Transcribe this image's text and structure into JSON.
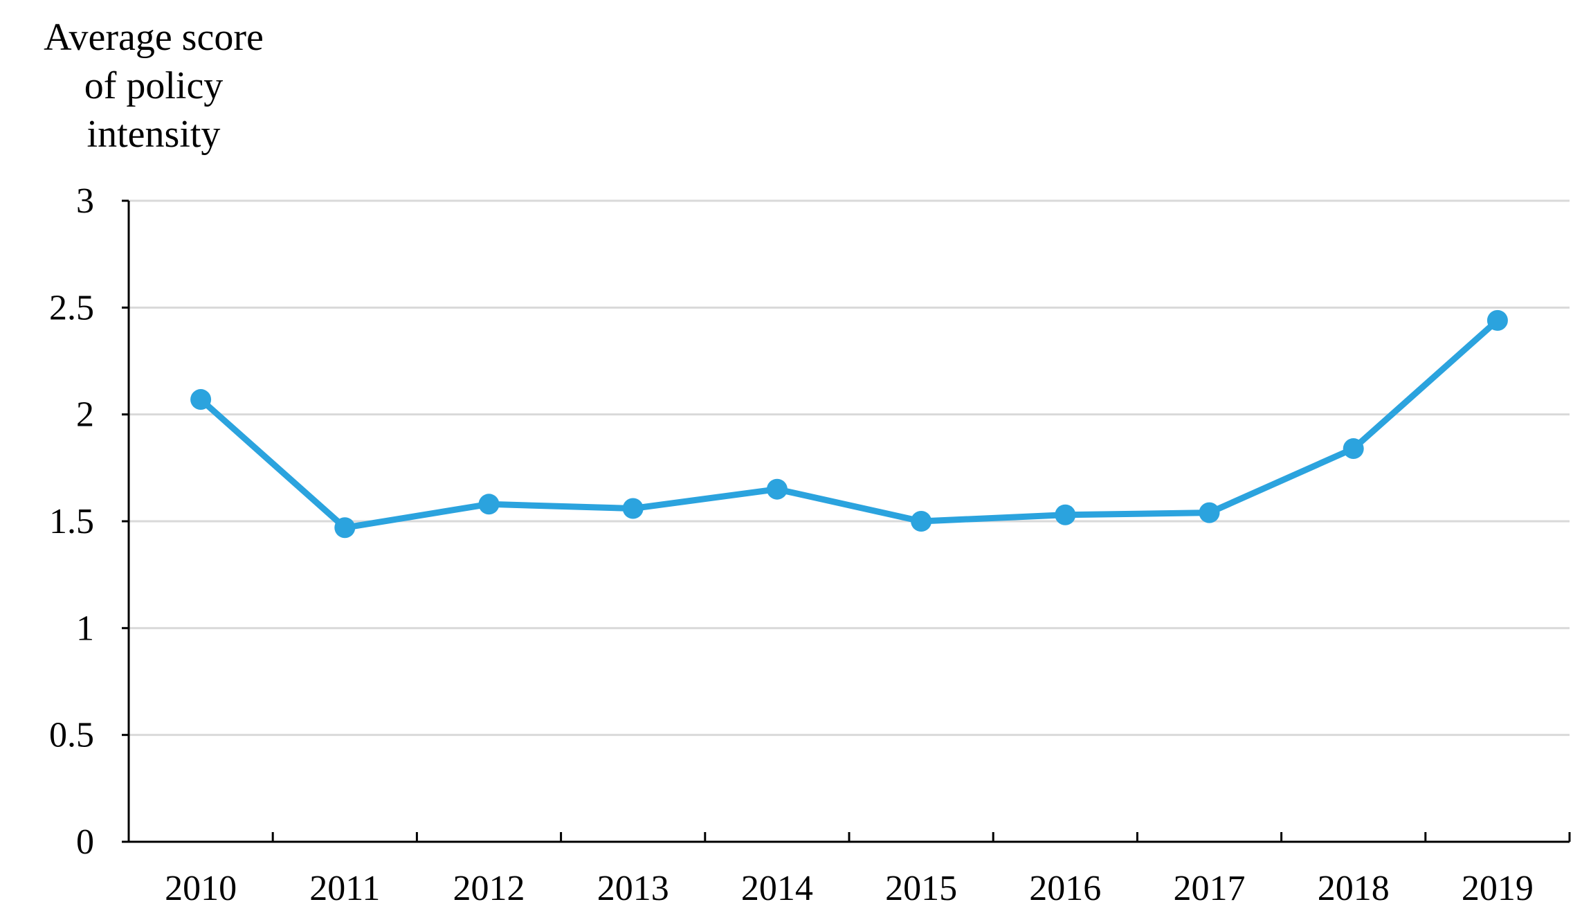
{
  "chart_data": {
    "type": "line",
    "title": "",
    "ylabel_lines": [
      "Average score",
      "of policy",
      "intensity"
    ],
    "xlabel": "",
    "categories": [
      "2010",
      "2011",
      "2012",
      "2013",
      "2014",
      "2015",
      "2016",
      "2017",
      "2018",
      "2019"
    ],
    "series": [
      {
        "values": [
          2.07,
          1.47,
          1.58,
          1.56,
          1.65,
          1.5,
          1.53,
          1.54,
          1.84,
          2.44
        ]
      }
    ],
    "ylim": [
      0,
      3
    ],
    "yticks": [
      "0",
      "0.5",
      "1",
      "1.5",
      "2",
      "2.5",
      "3"
    ],
    "grid": true,
    "legend": "none",
    "colors": {
      "line": "#2ba3de",
      "grid": "#d9d9d9",
      "axis": "#000000"
    }
  }
}
